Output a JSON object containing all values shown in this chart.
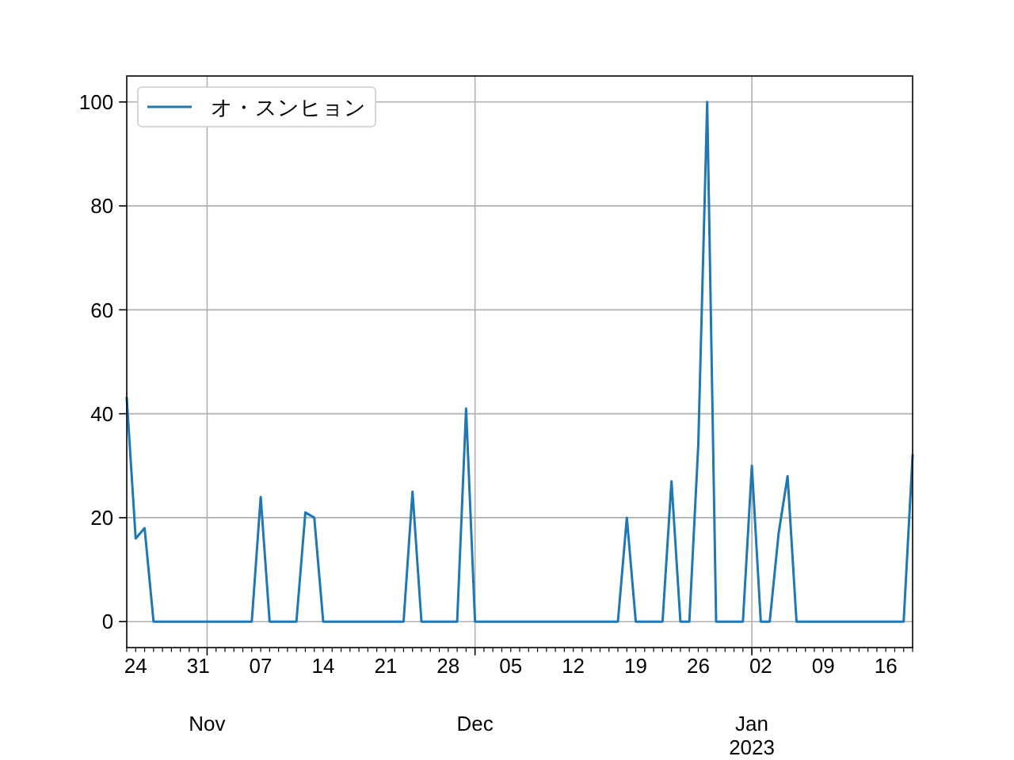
{
  "chart_data": {
    "type": "line",
    "x": [
      "2022-10-23",
      "2022-10-24",
      "2022-10-25",
      "2022-10-26",
      "2022-10-27",
      "2022-10-28",
      "2022-10-29",
      "2022-10-30",
      "2022-10-31",
      "2022-11-01",
      "2022-11-02",
      "2022-11-03",
      "2022-11-04",
      "2022-11-05",
      "2022-11-06",
      "2022-11-07",
      "2022-11-08",
      "2022-11-09",
      "2022-11-10",
      "2022-11-11",
      "2022-11-12",
      "2022-11-13",
      "2022-11-14",
      "2022-11-15",
      "2022-11-16",
      "2022-11-17",
      "2022-11-18",
      "2022-11-19",
      "2022-11-20",
      "2022-11-21",
      "2022-11-22",
      "2022-11-23",
      "2022-11-24",
      "2022-11-25",
      "2022-11-26",
      "2022-11-27",
      "2022-11-28",
      "2022-11-29",
      "2022-11-30",
      "2022-12-01",
      "2022-12-02",
      "2022-12-03",
      "2022-12-04",
      "2022-12-05",
      "2022-12-06",
      "2022-12-07",
      "2022-12-08",
      "2022-12-09",
      "2022-12-10",
      "2022-12-11",
      "2022-12-12",
      "2022-12-13",
      "2022-12-14",
      "2022-12-15",
      "2022-12-16",
      "2022-12-17",
      "2022-12-18",
      "2022-12-19",
      "2022-12-20",
      "2022-12-21",
      "2022-12-22",
      "2022-12-23",
      "2022-12-24",
      "2022-12-25",
      "2022-12-26",
      "2022-12-27",
      "2022-12-28",
      "2022-12-29",
      "2022-12-30",
      "2022-12-31",
      "2023-01-01",
      "2023-01-02",
      "2023-01-03",
      "2023-01-04",
      "2023-01-05",
      "2023-01-06",
      "2023-01-07",
      "2023-01-08",
      "2023-01-09",
      "2023-01-10",
      "2023-01-11",
      "2023-01-12",
      "2023-01-13",
      "2023-01-14",
      "2023-01-15",
      "2023-01-16",
      "2023-01-17",
      "2023-01-18",
      "2023-01-19"
    ],
    "series": [
      {
        "name": "オ・スンヒョン",
        "color": "#1f77b4",
        "values": [
          43,
          16,
          18,
          0,
          0,
          0,
          0,
          0,
          0,
          0,
          0,
          0,
          0,
          0,
          0,
          24,
          0,
          0,
          0,
          0,
          21,
          20,
          0,
          0,
          0,
          0,
          0,
          0,
          0,
          0,
          0,
          0,
          25,
          0,
          0,
          0,
          0,
          0,
          41,
          0,
          0,
          0,
          0,
          0,
          0,
          0,
          0,
          0,
          0,
          0,
          0,
          0,
          0,
          0,
          0,
          0,
          20,
          0,
          0,
          0,
          0,
          27,
          0,
          0,
          34,
          100,
          0,
          0,
          0,
          0,
          30,
          0,
          0,
          17,
          28,
          0,
          0,
          0,
          0,
          0,
          0,
          0,
          0,
          0,
          0,
          0,
          0,
          0,
          32
        ]
      }
    ],
    "xlim": [
      "2022-10-23",
      "2023-01-19"
    ],
    "xticks": [
      {
        "value": "2022-10-23",
        "label": null
      },
      {
        "value": "2022-10-24",
        "label": "24"
      },
      {
        "value": "2022-10-25",
        "label": null
      },
      {
        "value": "2022-10-26",
        "label": null
      },
      {
        "value": "2022-10-27",
        "label": null
      },
      {
        "value": "2022-10-28",
        "label": null
      },
      {
        "value": "2022-10-29",
        "label": null
      },
      {
        "value": "2022-10-30",
        "label": null
      },
      {
        "value": "2022-10-31",
        "label": "31"
      },
      {
        "value": "2022-11-02",
        "label": null
      },
      {
        "value": "2022-11-03",
        "label": null
      },
      {
        "value": "2022-11-04",
        "label": null
      },
      {
        "value": "2022-11-05",
        "label": null
      },
      {
        "value": "2022-11-06",
        "label": null
      },
      {
        "value": "2022-11-07",
        "label": "07"
      },
      {
        "value": "2022-11-08",
        "label": null
      },
      {
        "value": "2022-11-09",
        "label": null
      },
      {
        "value": "2022-11-10",
        "label": null
      },
      {
        "value": "2022-11-11",
        "label": null
      },
      {
        "value": "2022-11-12",
        "label": null
      },
      {
        "value": "2022-11-13",
        "label": null
      },
      {
        "value": "2022-11-14",
        "label": "14"
      },
      {
        "value": "2022-11-15",
        "label": null
      },
      {
        "value": "2022-11-16",
        "label": null
      },
      {
        "value": "2022-11-17",
        "label": null
      },
      {
        "value": "2022-11-18",
        "label": null
      },
      {
        "value": "2022-11-19",
        "label": null
      },
      {
        "value": "2022-11-20",
        "label": null
      },
      {
        "value": "2022-11-21",
        "label": "21"
      },
      {
        "value": "2022-11-22",
        "label": null
      },
      {
        "value": "2022-11-23",
        "label": null
      },
      {
        "value": "2022-11-24",
        "label": null
      },
      {
        "value": "2022-11-25",
        "label": null
      },
      {
        "value": "2022-11-26",
        "label": null
      },
      {
        "value": "2022-11-27",
        "label": null
      },
      {
        "value": "2022-11-28",
        "label": "28"
      },
      {
        "value": "2022-11-29",
        "label": null
      },
      {
        "value": "2022-11-30",
        "label": null
      },
      {
        "value": "2022-12-02",
        "label": null
      },
      {
        "value": "2022-12-03",
        "label": null
      },
      {
        "value": "2022-12-04",
        "label": null
      },
      {
        "value": "2022-12-05",
        "label": "05"
      },
      {
        "value": "2022-12-06",
        "label": null
      },
      {
        "value": "2022-12-07",
        "label": null
      },
      {
        "value": "2022-12-08",
        "label": null
      },
      {
        "value": "2022-12-09",
        "label": null
      },
      {
        "value": "2022-12-10",
        "label": null
      },
      {
        "value": "2022-12-11",
        "label": null
      },
      {
        "value": "2022-12-12",
        "label": "12"
      },
      {
        "value": "2022-12-13",
        "label": null
      },
      {
        "value": "2022-12-14",
        "label": null
      },
      {
        "value": "2022-12-15",
        "label": null
      },
      {
        "value": "2022-12-16",
        "label": null
      },
      {
        "value": "2022-12-17",
        "label": null
      },
      {
        "value": "2022-12-18",
        "label": null
      },
      {
        "value": "2022-12-19",
        "label": "19"
      },
      {
        "value": "2022-12-20",
        "label": null
      },
      {
        "value": "2022-12-21",
        "label": null
      },
      {
        "value": "2022-12-22",
        "label": null
      },
      {
        "value": "2022-12-23",
        "label": null
      },
      {
        "value": "2022-12-24",
        "label": null
      },
      {
        "value": "2022-12-25",
        "label": null
      },
      {
        "value": "2022-12-26",
        "label": "26"
      },
      {
        "value": "2022-12-27",
        "label": null
      },
      {
        "value": "2022-12-28",
        "label": null
      },
      {
        "value": "2022-12-29",
        "label": null
      },
      {
        "value": "2022-12-30",
        "label": null
      },
      {
        "value": "2022-12-31",
        "label": null
      },
      {
        "value": "2023-01-02",
        "label": "02"
      },
      {
        "value": "2023-01-03",
        "label": null
      },
      {
        "value": "2023-01-04",
        "label": null
      },
      {
        "value": "2023-01-05",
        "label": null
      },
      {
        "value": "2023-01-06",
        "label": null
      },
      {
        "value": "2023-01-07",
        "label": null
      },
      {
        "value": "2023-01-08",
        "label": null
      },
      {
        "value": "2023-01-09",
        "label": "09"
      },
      {
        "value": "2023-01-10",
        "label": null
      },
      {
        "value": "2023-01-11",
        "label": null
      },
      {
        "value": "2023-01-12",
        "label": null
      },
      {
        "value": "2023-01-13",
        "label": null
      },
      {
        "value": "2023-01-14",
        "label": null
      },
      {
        "value": "2023-01-15",
        "label": null
      },
      {
        "value": "2023-01-16",
        "label": "16"
      },
      {
        "value": "2023-01-17",
        "label": null
      },
      {
        "value": "2023-01-18",
        "label": null
      },
      {
        "value": "2023-01-19",
        "label": null
      }
    ],
    "x2lim": [
      "2022-10-23",
      "2023-01-19"
    ],
    "x2ticks": [
      {
        "value": "2022-11-01",
        "label": "Nov"
      },
      {
        "value": "2022-12-01",
        "label": "Dec"
      },
      {
        "value": "2023-01-01",
        "label": "Jan\n2023"
      }
    ],
    "ylim": [
      -5,
      105
    ],
    "yticks": [
      0,
      20,
      40,
      60,
      80,
      100
    ],
    "grid": true,
    "legend": "top left"
  }
}
